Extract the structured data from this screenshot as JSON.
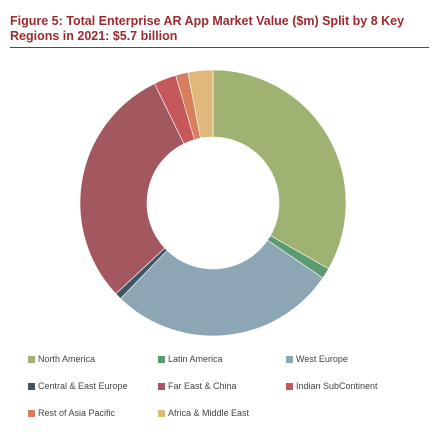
{
  "title": "Figure 5: Total Enterprise AR App Market Value ($m) Split by 8 Key Regions in 2021: $5.7 billion",
  "chart_data": {
    "type": "pie",
    "donut": true,
    "legend_position": "bottom",
    "categories": [
      "North America",
      "Latin America",
      "West Europe",
      "Central & East Europe",
      "Far East & China",
      "Indian SubContinent",
      "Rest of Asia Pacific",
      "Africa & Middle East"
    ],
    "values": [
      33.0,
      1.3,
      27.5,
      0.8,
      29.5,
      2.7,
      1.5,
      3.0
    ],
    "unit": "%",
    "colors": [
      "#a0b272",
      "#5c9a70",
      "#8ca6b6",
      "#3e5565",
      "#a2585e",
      "#c4585a",
      "#d77f5c",
      "#e1b87c"
    ]
  }
}
